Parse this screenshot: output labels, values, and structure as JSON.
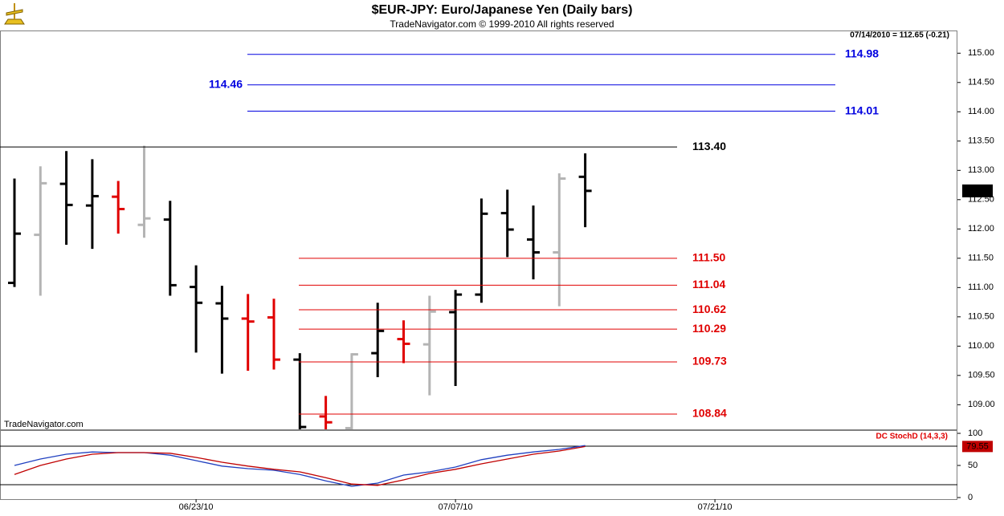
{
  "chart_data": [
    {
      "type": "ohlc",
      "title": "$EUR-JPY:  Euro/Japanese Yen  (Daily bars)",
      "subtitle": "TradeNavigator.com © 1999-2010 All rights reserved",
      "header_note": "07/14/2010 = 112.65 (-0.21)",
      "watermark": "TradeNavigator.com",
      "x": [
        null,
        null,
        null,
        null,
        null,
        null,
        null,
        "06/23/10",
        null,
        null,
        null,
        null,
        null,
        null,
        null,
        null,
        null,
        "07/07/10",
        null,
        null,
        null,
        null,
        null,
        null,
        null,
        null,
        null,
        "07/21/10",
        null,
        null,
        null,
        null,
        null,
        null,
        null,
        null,
        null
      ],
      "bars": [
        {
          "open": 111.08,
          "high": 112.86,
          "low": 111.01,
          "close": 111.92,
          "color": "#000000"
        },
        {
          "open": 111.9,
          "high": 113.07,
          "low": 110.86,
          "close": 112.78,
          "color": "#b4b4b4"
        },
        {
          "open": 112.77,
          "high": 113.33,
          "low": 111.73,
          "close": 112.41,
          "color": "#000000"
        },
        {
          "open": 112.4,
          "high": 113.19,
          "low": 111.66,
          "close": 112.56,
          "color": "#000000"
        },
        {
          "open": 112.55,
          "high": 112.82,
          "low": 111.92,
          "close": 112.34,
          "color": "#e00000"
        },
        {
          "open": 112.07,
          "high": 113.42,
          "low": 111.85,
          "close": 112.18,
          "color": "#b4b4b4"
        },
        {
          "open": 112.16,
          "high": 112.48,
          "low": 110.86,
          "close": 111.04,
          "color": "#000000"
        },
        {
          "open": 111.01,
          "high": 111.38,
          "low": 109.89,
          "close": 110.74,
          "color": "#000000"
        },
        {
          "open": 110.73,
          "high": 111.03,
          "low": 109.53,
          "close": 110.47,
          "color": "#000000"
        },
        {
          "open": 110.47,
          "high": 110.89,
          "low": 109.58,
          "close": 110.42,
          "color": "#e00000"
        },
        {
          "open": 110.49,
          "high": 110.81,
          "low": 109.6,
          "close": 109.77,
          "color": "#e00000"
        },
        {
          "open": 109.77,
          "high": 109.88,
          "low": 108.45,
          "close": 108.62,
          "color": "#000000"
        },
        {
          "open": 108.8,
          "high": 109.15,
          "low": 108.4,
          "close": 108.7,
          "color": "#e00000"
        },
        {
          "open": 108.6,
          "high": 109.88,
          "low": 108.5,
          "close": 109.86,
          "color": "#b4b4b4"
        },
        {
          "open": 109.88,
          "high": 110.74,
          "low": 109.47,
          "close": 110.26,
          "color": "#000000"
        },
        {
          "open": 110.12,
          "high": 110.44,
          "low": 109.71,
          "close": 110.04,
          "color": "#e00000"
        },
        {
          "open": 110.03,
          "high": 110.86,
          "low": 109.16,
          "close": 110.59,
          "color": "#b4b4b4"
        },
        {
          "open": 110.58,
          "high": 110.96,
          "low": 109.32,
          "close": 110.88,
          "color": "#000000"
        },
        {
          "open": 110.88,
          "high": 112.52,
          "low": 110.74,
          "close": 112.26,
          "color": "#000000"
        },
        {
          "open": 112.27,
          "high": 112.67,
          "low": 111.52,
          "close": 111.99,
          "color": "#000000"
        },
        {
          "open": 111.82,
          "high": 112.4,
          "low": 111.14,
          "close": 111.6,
          "color": "#000000"
        },
        {
          "open": 111.6,
          "high": 112.95,
          "low": 110.68,
          "close": 112.86,
          "color": "#b4b4b4"
        },
        {
          "open": 112.89,
          "high": 113.29,
          "low": 112.03,
          "close": 112.65,
          "color": "#000000"
        }
      ],
      "levels": [
        {
          "value": 114.98,
          "color": "#0000e0"
        },
        {
          "value": 114.46,
          "color": "#0000e0"
        },
        {
          "value": 114.01,
          "color": "#0000e0"
        },
        {
          "value": 113.4,
          "label": "113.40",
          "color": "#000000"
        },
        {
          "value": 111.5,
          "label": "111.50",
          "color": "#e00000"
        },
        {
          "value": 111.04,
          "color": "#e00000"
        },
        {
          "value": 110.62,
          "color": "#e00000"
        },
        {
          "value": 110.29,
          "color": "#e00000"
        },
        {
          "value": 109.73,
          "color": "#e00000"
        },
        {
          "value": 108.84,
          "color": "#e00000"
        }
      ],
      "ylim": [
        108.58,
        115.36
      ],
      "yticks": [
        {
          "value": 109,
          "label": "109.00"
        },
        {
          "value": 109.5,
          "label": "109.50"
        },
        {
          "value": 110,
          "label": "110.00"
        },
        {
          "value": 110.5,
          "label": "110.50"
        },
        {
          "value": 111,
          "label": "111.00"
        },
        {
          "value": 111.5,
          "label": "111.50"
        },
        {
          "value": 112,
          "label": "112.00"
        },
        {
          "value": 112.5,
          "label": "112.50"
        },
        {
          "value": 113,
          "label": "113.00"
        },
        {
          "value": 113.5,
          "label": "113.50"
        },
        {
          "value": 114,
          "label": "114.00"
        },
        {
          "value": 114.5,
          "label": "114.50"
        },
        {
          "value": 115,
          "label": "115.00"
        }
      ]
    },
    {
      "type": "line",
      "title": "DC StochD (14,3,3)",
      "series": [
        {
          "color": "#2040c0",
          "values": [
            50,
            60,
            67.5,
            71,
            70,
            70,
            66,
            57.5,
            49,
            45,
            42.5,
            36,
            26,
            17.5,
            22.5,
            35,
            40,
            47.5,
            59,
            66,
            71,
            75,
            81
          ]
        },
        {
          "color": "#c00000",
          "values": [
            36,
            50,
            60,
            67.5,
            70,
            70,
            69,
            62.5,
            55,
            49,
            44,
            40,
            31,
            21,
            19,
            27.5,
            37.5,
            44,
            52.5,
            60,
            67.5,
            72.5,
            79.55
          ]
        }
      ],
      "ylim": [
        0,
        100
      ],
      "yticks": [
        0,
        50,
        100
      ],
      "hlines": [
        20,
        80
      ]
    }
  ]
}
